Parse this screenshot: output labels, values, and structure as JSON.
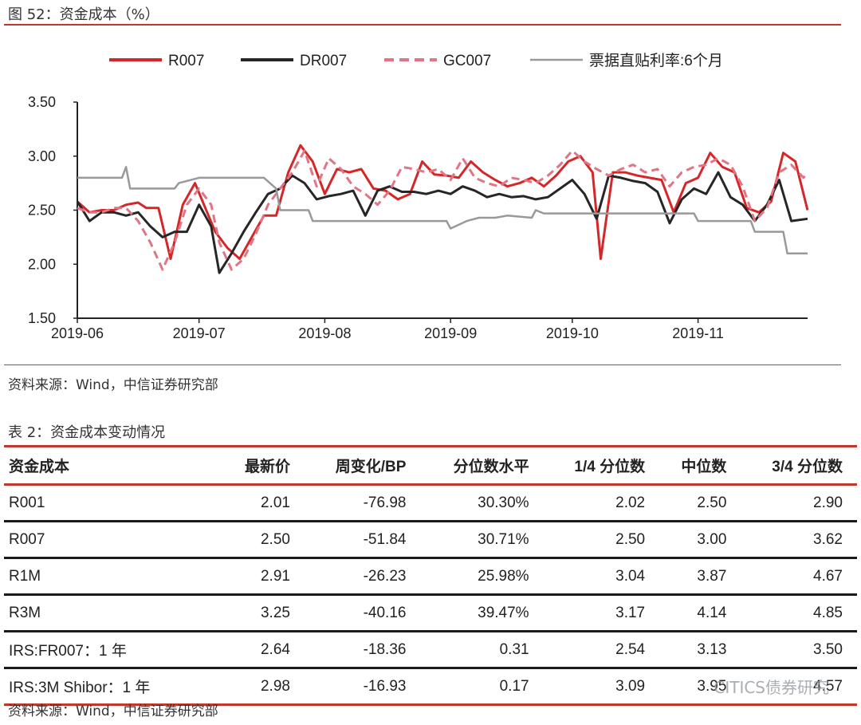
{
  "figure": {
    "title": "图 52：资金成本（%）",
    "source": "资料来源：Wind，中信证券研究部"
  },
  "chart_data": {
    "type": "line",
    "title": "",
    "xlabel": "",
    "ylabel": "",
    "ylim": [
      1.5,
      3.5
    ],
    "yticks": [
      "3.50",
      "3.00",
      "2.50",
      "2.00",
      "1.50"
    ],
    "xlim": [
      "2019-06-01",
      "2019-11-28"
    ],
    "xticks": [
      "2019-06",
      "2019-07",
      "2019-08",
      "2019-09",
      "2019-10",
      "2019-11"
    ],
    "legend_position": "top",
    "series": [
      {
        "name": "R007",
        "color": "#d62728",
        "style": "solid",
        "points": [
          [
            "2019-06-01",
            2.58
          ],
          [
            "2019-06-04",
            2.48
          ],
          [
            "2019-06-07",
            2.5
          ],
          [
            "2019-06-10",
            2.5
          ],
          [
            "2019-06-13",
            2.55
          ],
          [
            "2019-06-16",
            2.57
          ],
          [
            "2019-06-18",
            2.52
          ],
          [
            "2019-06-21",
            2.52
          ],
          [
            "2019-06-24",
            2.05
          ],
          [
            "2019-06-27",
            2.55
          ],
          [
            "2019-06-30",
            2.75
          ],
          [
            "2019-07-03",
            2.48
          ],
          [
            "2019-07-05",
            2.3
          ],
          [
            "2019-07-08",
            2.15
          ],
          [
            "2019-07-11",
            2.05
          ],
          [
            "2019-07-14",
            2.25
          ],
          [
            "2019-07-17",
            2.45
          ],
          [
            "2019-07-20",
            2.45
          ],
          [
            "2019-07-23",
            2.85
          ],
          [
            "2019-07-26",
            3.1
          ],
          [
            "2019-07-29",
            2.95
          ],
          [
            "2019-08-01",
            2.65
          ],
          [
            "2019-08-04",
            2.88
          ],
          [
            "2019-08-07",
            2.85
          ],
          [
            "2019-08-10",
            2.88
          ],
          [
            "2019-08-13",
            2.7
          ],
          [
            "2019-08-16",
            2.68
          ],
          [
            "2019-08-19",
            2.6
          ],
          [
            "2019-08-22",
            2.65
          ],
          [
            "2019-08-25",
            2.95
          ],
          [
            "2019-08-28",
            2.83
          ],
          [
            "2019-08-31",
            2.82
          ],
          [
            "2019-09-03",
            2.8
          ],
          [
            "2019-09-06",
            2.95
          ],
          [
            "2019-09-09",
            2.85
          ],
          [
            "2019-09-12",
            2.78
          ],
          [
            "2019-09-15",
            2.72
          ],
          [
            "2019-09-18",
            2.75
          ],
          [
            "2019-09-21",
            2.8
          ],
          [
            "2019-09-24",
            2.72
          ],
          [
            "2019-09-27",
            2.82
          ],
          [
            "2019-09-30",
            2.95
          ],
          [
            "2019-10-03",
            3.0
          ],
          [
            "2019-10-06",
            2.85
          ],
          [
            "2019-10-08",
            2.05
          ],
          [
            "2019-10-11",
            2.85
          ],
          [
            "2019-10-14",
            2.85
          ],
          [
            "2019-10-17",
            2.82
          ],
          [
            "2019-10-20",
            2.8
          ],
          [
            "2019-10-23",
            2.78
          ],
          [
            "2019-10-26",
            2.48
          ],
          [
            "2019-10-29",
            2.75
          ],
          [
            "2019-11-01",
            2.8
          ],
          [
            "2019-11-04",
            3.03
          ],
          [
            "2019-11-07",
            2.9
          ],
          [
            "2019-11-10",
            2.85
          ],
          [
            "2019-11-13",
            2.52
          ],
          [
            "2019-11-16",
            2.48
          ],
          [
            "2019-11-19",
            2.58
          ],
          [
            "2019-11-22",
            3.03
          ],
          [
            "2019-11-25",
            2.95
          ],
          [
            "2019-11-28",
            2.5
          ]
        ]
      },
      {
        "name": "DR007",
        "color": "#262626",
        "style": "solid",
        "points": [
          [
            "2019-06-01",
            2.58
          ],
          [
            "2019-06-04",
            2.4
          ],
          [
            "2019-06-07",
            2.48
          ],
          [
            "2019-06-10",
            2.48
          ],
          [
            "2019-06-13",
            2.45
          ],
          [
            "2019-06-16",
            2.48
          ],
          [
            "2019-06-19",
            2.35
          ],
          [
            "2019-06-22",
            2.25
          ],
          [
            "2019-06-25",
            2.3
          ],
          [
            "2019-06-28",
            2.3
          ],
          [
            "2019-07-01",
            2.55
          ],
          [
            "2019-07-04",
            2.35
          ],
          [
            "2019-07-06",
            1.92
          ],
          [
            "2019-07-09",
            2.1
          ],
          [
            "2019-07-12",
            2.3
          ],
          [
            "2019-07-15",
            2.48
          ],
          [
            "2019-07-18",
            2.65
          ],
          [
            "2019-07-21",
            2.7
          ],
          [
            "2019-07-24",
            2.82
          ],
          [
            "2019-07-27",
            2.75
          ],
          [
            "2019-07-30",
            2.6
          ],
          [
            "2019-08-02",
            2.63
          ],
          [
            "2019-08-05",
            2.65
          ],
          [
            "2019-08-08",
            2.68
          ],
          [
            "2019-08-11",
            2.45
          ],
          [
            "2019-08-14",
            2.68
          ],
          [
            "2019-08-17",
            2.72
          ],
          [
            "2019-08-20",
            2.67
          ],
          [
            "2019-08-23",
            2.67
          ],
          [
            "2019-08-26",
            2.65
          ],
          [
            "2019-08-29",
            2.68
          ],
          [
            "2019-09-01",
            2.65
          ],
          [
            "2019-09-04",
            2.72
          ],
          [
            "2019-09-07",
            2.68
          ],
          [
            "2019-09-10",
            2.62
          ],
          [
            "2019-09-13",
            2.65
          ],
          [
            "2019-09-16",
            2.62
          ],
          [
            "2019-09-19",
            2.63
          ],
          [
            "2019-09-22",
            2.6
          ],
          [
            "2019-09-25",
            2.62
          ],
          [
            "2019-09-28",
            2.7
          ],
          [
            "2019-10-01",
            2.78
          ],
          [
            "2019-10-04",
            2.65
          ],
          [
            "2019-10-07",
            2.42
          ],
          [
            "2019-10-10",
            2.82
          ],
          [
            "2019-10-13",
            2.8
          ],
          [
            "2019-10-16",
            2.77
          ],
          [
            "2019-10-19",
            2.75
          ],
          [
            "2019-10-22",
            2.67
          ],
          [
            "2019-10-25",
            2.38
          ],
          [
            "2019-10-28",
            2.6
          ],
          [
            "2019-10-31",
            2.7
          ],
          [
            "2019-11-03",
            2.65
          ],
          [
            "2019-11-06",
            2.85
          ],
          [
            "2019-11-09",
            2.62
          ],
          [
            "2019-11-12",
            2.55
          ],
          [
            "2019-11-15",
            2.4
          ],
          [
            "2019-11-18",
            2.55
          ],
          [
            "2019-11-21",
            2.78
          ],
          [
            "2019-11-24",
            2.4
          ],
          [
            "2019-11-28",
            2.42
          ]
        ]
      },
      {
        "name": "GC007",
        "color": "#e07585",
        "style": "dashed",
        "points": [
          [
            "2019-06-01",
            2.52
          ],
          [
            "2019-06-04",
            2.48
          ],
          [
            "2019-06-07",
            2.48
          ],
          [
            "2019-06-10",
            2.52
          ],
          [
            "2019-06-13",
            2.52
          ],
          [
            "2019-06-16",
            2.4
          ],
          [
            "2019-06-19",
            2.2
          ],
          [
            "2019-06-22",
            1.95
          ],
          [
            "2019-06-25",
            2.2
          ],
          [
            "2019-06-28",
            2.55
          ],
          [
            "2019-07-01",
            2.7
          ],
          [
            "2019-07-04",
            2.55
          ],
          [
            "2019-07-06",
            2.2
          ],
          [
            "2019-07-09",
            1.95
          ],
          [
            "2019-07-12",
            2.05
          ],
          [
            "2019-07-15",
            2.28
          ],
          [
            "2019-07-18",
            2.55
          ],
          [
            "2019-07-21",
            2.7
          ],
          [
            "2019-07-24",
            2.85
          ],
          [
            "2019-07-27",
            3.05
          ],
          [
            "2019-07-30",
            2.72
          ],
          [
            "2019-08-02",
            2.98
          ],
          [
            "2019-08-05",
            2.88
          ],
          [
            "2019-08-08",
            2.72
          ],
          [
            "2019-08-11",
            2.65
          ],
          [
            "2019-08-14",
            2.55
          ],
          [
            "2019-08-17",
            2.68
          ],
          [
            "2019-08-20",
            2.9
          ],
          [
            "2019-08-23",
            2.88
          ],
          [
            "2019-08-26",
            2.85
          ],
          [
            "2019-08-29",
            2.88
          ],
          [
            "2019-09-01",
            2.78
          ],
          [
            "2019-09-04",
            2.98
          ],
          [
            "2019-09-07",
            2.8
          ],
          [
            "2019-09-10",
            2.75
          ],
          [
            "2019-09-13",
            2.72
          ],
          [
            "2019-09-16",
            2.8
          ],
          [
            "2019-09-19",
            2.78
          ],
          [
            "2019-09-22",
            2.75
          ],
          [
            "2019-09-25",
            2.82
          ],
          [
            "2019-09-28",
            2.92
          ],
          [
            "2019-10-01",
            3.05
          ],
          [
            "2019-10-04",
            2.95
          ],
          [
            "2019-10-07",
            2.88
          ],
          [
            "2019-10-10",
            2.82
          ],
          [
            "2019-10-13",
            2.88
          ],
          [
            "2019-10-16",
            2.92
          ],
          [
            "2019-10-19",
            2.85
          ],
          [
            "2019-10-22",
            2.88
          ],
          [
            "2019-10-25",
            2.72
          ],
          [
            "2019-10-28",
            2.85
          ],
          [
            "2019-10-31",
            2.9
          ],
          [
            "2019-11-03",
            2.92
          ],
          [
            "2019-11-06",
            2.98
          ],
          [
            "2019-11-09",
            2.92
          ],
          [
            "2019-11-12",
            2.72
          ],
          [
            "2019-11-15",
            2.4
          ],
          [
            "2019-11-18",
            2.52
          ],
          [
            "2019-11-21",
            2.85
          ],
          [
            "2019-11-24",
            2.92
          ],
          [
            "2019-11-27",
            2.8
          ],
          [
            "2019-11-28",
            2.85
          ]
        ]
      },
      {
        "name": "票据直贴利率:6个月",
        "color": "#999999",
        "style": "solid",
        "points": [
          [
            "2019-06-01",
            2.8
          ],
          [
            "2019-06-10",
            2.8
          ],
          [
            "2019-06-12",
            2.8
          ],
          [
            "2019-06-13",
            2.9
          ],
          [
            "2019-06-14",
            2.7
          ],
          [
            "2019-06-25",
            2.7
          ],
          [
            "2019-06-26",
            2.75
          ],
          [
            "2019-07-01",
            2.8
          ],
          [
            "2019-07-17",
            2.8
          ],
          [
            "2019-07-20",
            2.7
          ],
          [
            "2019-07-21",
            2.5
          ],
          [
            "2019-07-28",
            2.5
          ],
          [
            "2019-07-29",
            2.4
          ],
          [
            "2019-08-31",
            2.4
          ],
          [
            "2019-09-01",
            2.33
          ],
          [
            "2019-09-05",
            2.4
          ],
          [
            "2019-09-08",
            2.43
          ],
          [
            "2019-09-12",
            2.43
          ],
          [
            "2019-09-15",
            2.45
          ],
          [
            "2019-09-21",
            2.43
          ],
          [
            "2019-09-22",
            2.5
          ],
          [
            "2019-09-24",
            2.47
          ],
          [
            "2019-10-31",
            2.47
          ],
          [
            "2019-11-01",
            2.4
          ],
          [
            "2019-11-14",
            2.4
          ],
          [
            "2019-11-15",
            2.3
          ],
          [
            "2019-11-22",
            2.3
          ],
          [
            "2019-11-23",
            2.1
          ],
          [
            "2019-11-28",
            2.1
          ]
        ]
      }
    ]
  },
  "table": {
    "title": "表 2：资金成本变动情况",
    "source": "资料来源：Wind，中信证券研究部",
    "headers": [
      "资金成本",
      "最新价",
      "周变化/BP",
      "分位数水平",
      "1/4 分位数",
      "中位数",
      "3/4 分位数"
    ],
    "rows": [
      [
        "R001",
        "2.01",
        "-76.98",
        "30.30%",
        "2.02",
        "2.50",
        "2.90"
      ],
      [
        "R007",
        "2.50",
        "-51.84",
        "30.71%",
        "2.50",
        "3.00",
        "3.62"
      ],
      [
        "R1M",
        "2.91",
        "-26.23",
        "25.98%",
        "3.04",
        "3.87",
        "4.67"
      ],
      [
        "R3M",
        "3.25",
        "-40.16",
        "39.47%",
        "3.17",
        "4.14",
        "4.85"
      ],
      [
        "IRS:FR007：1 年",
        "2.64",
        "-18.36",
        "0.31",
        "2.54",
        "3.13",
        "3.50"
      ],
      [
        "IRS:3M Shibor：1 年",
        "2.98",
        "-16.93",
        "0.17",
        "3.09",
        "3.95",
        "4.57"
      ]
    ]
  },
  "watermark": "CITICS债券研究"
}
